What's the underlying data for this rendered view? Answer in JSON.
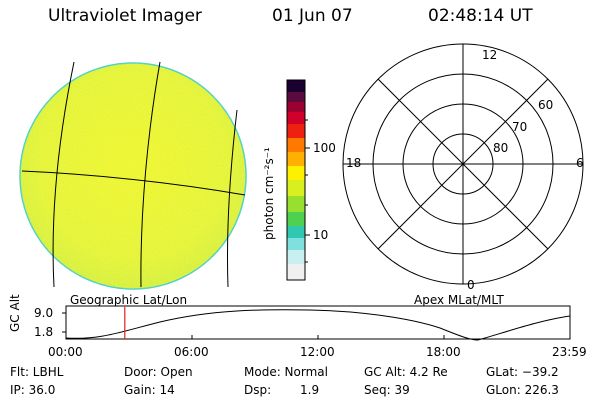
{
  "header": {
    "title": "Ultraviolet Imager",
    "date": "01 Jun 07",
    "time": "02:48:14 UT"
  },
  "colorbar": {
    "unit_label": "photon cm⁻²s⁻¹",
    "ticks": [
      "100",
      "10"
    ],
    "scale": "log"
  },
  "polar_plot": {
    "mlt_labels": {
      "top": "12",
      "left": "18",
      "right": "6",
      "bottom": "0"
    },
    "lat_labels": [
      "60",
      "70",
      "80"
    ],
    "caption": "Apex MLat/MLT"
  },
  "image_panel": {
    "caption": "Geographic Lat/Lon",
    "fill_color": "#e6f52a"
  },
  "altitude_plot": {
    "ylabel": "GC Alt",
    "yticks": [
      "9.0",
      "1.8"
    ],
    "xticks": [
      "00:00",
      "06:00",
      "12:00",
      "18:00",
      "23:59"
    ],
    "marker_time": "02:48",
    "marker_color": "#e02020"
  },
  "info": {
    "flt": "Flt: LBHL",
    "ip": "IP: 36.0",
    "door": "Door: Open",
    "gain": "Gain: 14",
    "mode": "Mode: Normal",
    "dsp_label": "Dsp:",
    "dsp_value": "1.9",
    "gc_alt": "GC Alt: 4.2 Re",
    "seq": "Seq: 39",
    "glat": "GLat: −39.2",
    "glon": "GLon: 226.3"
  }
}
